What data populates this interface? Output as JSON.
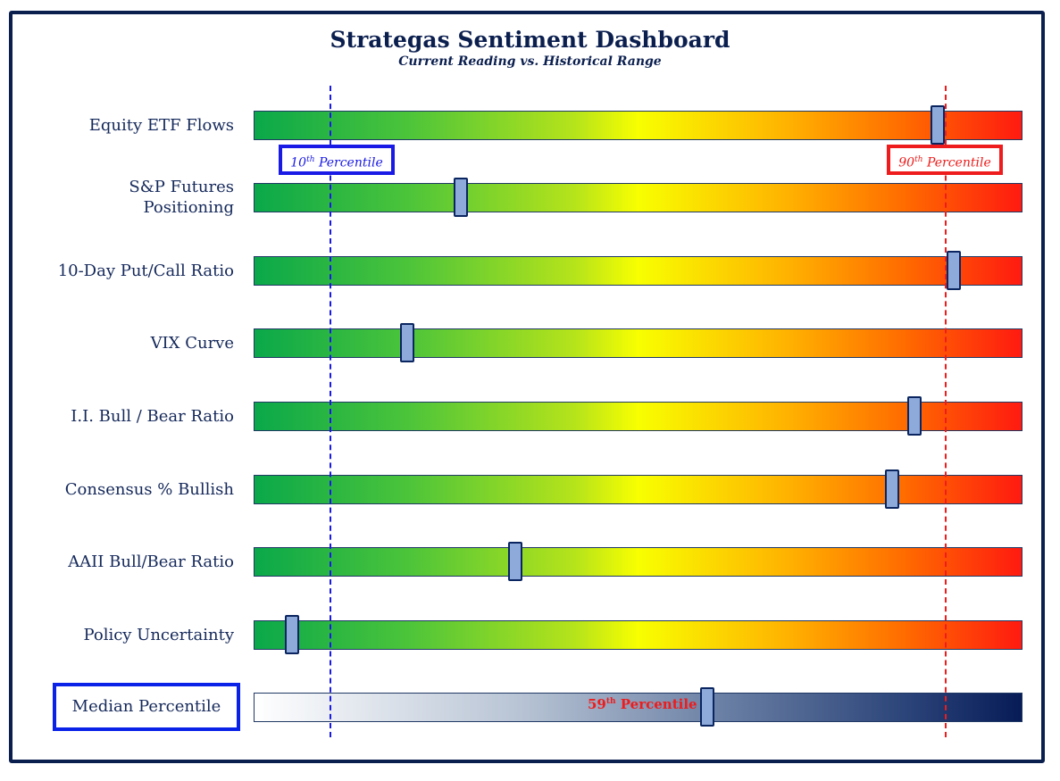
{
  "chart_data": {
    "type": "bar",
    "title": "Strategas Sentiment Dashboard",
    "subtitle": "Current Reading vs. Historical Range",
    "xlim": [
      0,
      100
    ],
    "unit": "percentile",
    "reference_lines": [
      {
        "value": 10,
        "num": "10",
        "sup": "th",
        "text": "Percentile",
        "color": "#1a1ae6"
      },
      {
        "value": 90,
        "num": "90",
        "sup": "th",
        "text": "Percentile",
        "color": "#ee1c1c"
      }
    ],
    "indicators": [
      {
        "label": [
          "Equity ETF Flows"
        ],
        "value": 89
      },
      {
        "label": [
          "S&P Futures",
          "Positioning"
        ],
        "value": 27
      },
      {
        "label": [
          "10-Day Put/Call Ratio"
        ],
        "value": 91
      },
      {
        "label": [
          "VIX Curve"
        ],
        "value": 20
      },
      {
        "label": [
          "I.I. Bull / Bear Ratio"
        ],
        "value": 86
      },
      {
        "label": [
          "Consensus % Bullish"
        ],
        "value": 83
      },
      {
        "label": [
          "AAII Bull/Bear Ratio"
        ],
        "value": 34
      },
      {
        "label": [
          "Policy Uncertainty"
        ],
        "value": 5
      }
    ],
    "median": {
      "label": "Median Percentile",
      "value": 59,
      "num": "59",
      "sup": "th",
      "text": "Percentile"
    }
  }
}
